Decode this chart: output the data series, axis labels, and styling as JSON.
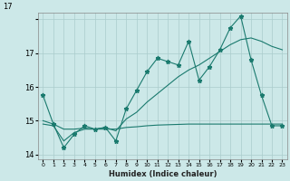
{
  "xlabel": "Humidex (Indice chaleur)",
  "bg_color": "#cce8e8",
  "line_color": "#1a7a6e",
  "grid_color": "#aacccc",
  "xlim": [
    -0.5,
    23.5
  ],
  "ylim": [
    13.85,
    18.2
  ],
  "yticks": [
    14,
    15,
    16,
    17,
    18
  ],
  "ytick_labels": [
    "14",
    "15",
    "16",
    "17",
    ""
  ],
  "xtick_labels": [
    "0",
    "1",
    "2",
    "3",
    "4",
    "5",
    "6",
    "7",
    "8",
    "9",
    "10",
    "11",
    "12",
    "13",
    "14",
    "15",
    "16",
    "17",
    "18",
    "19",
    "20",
    "21",
    "22",
    "23"
  ],
  "series1_x": [
    0,
    1,
    2,
    3,
    4,
    5,
    6,
    7,
    8,
    9,
    10,
    11,
    12,
    13,
    14,
    15,
    16,
    17,
    18,
    19,
    20,
    21,
    22,
    23
  ],
  "series1_y": [
    15.75,
    14.9,
    14.2,
    14.6,
    14.85,
    14.75,
    14.8,
    14.4,
    15.35,
    15.9,
    16.45,
    16.85,
    16.75,
    16.65,
    17.35,
    16.2,
    16.6,
    17.1,
    17.75,
    18.1,
    16.8,
    15.75,
    14.85,
    14.85
  ],
  "series2_x": [
    0,
    1,
    2,
    3,
    4,
    5,
    6,
    7,
    8,
    9,
    10,
    11,
    12,
    13,
    14,
    15,
    16,
    17,
    18,
    19,
    20,
    21,
    22,
    23
  ],
  "series2_y": [
    14.9,
    14.85,
    14.4,
    14.65,
    14.75,
    14.75,
    14.8,
    14.7,
    15.05,
    15.25,
    15.55,
    15.8,
    16.05,
    16.3,
    16.5,
    16.65,
    16.85,
    17.05,
    17.25,
    17.4,
    17.45,
    17.35,
    17.2,
    17.1
  ],
  "series3_x": [
    0,
    1,
    2,
    3,
    4,
    5,
    6,
    7,
    8,
    9,
    10,
    11,
    12,
    13,
    14,
    15,
    16,
    17,
    18,
    19,
    20,
    21,
    22,
    23
  ],
  "series3_y": [
    15.0,
    14.9,
    14.75,
    14.75,
    14.78,
    14.75,
    14.75,
    14.75,
    14.8,
    14.82,
    14.85,
    14.87,
    14.88,
    14.89,
    14.9,
    14.9,
    14.9,
    14.9,
    14.9,
    14.9,
    14.9,
    14.9,
    14.9,
    14.9
  ]
}
